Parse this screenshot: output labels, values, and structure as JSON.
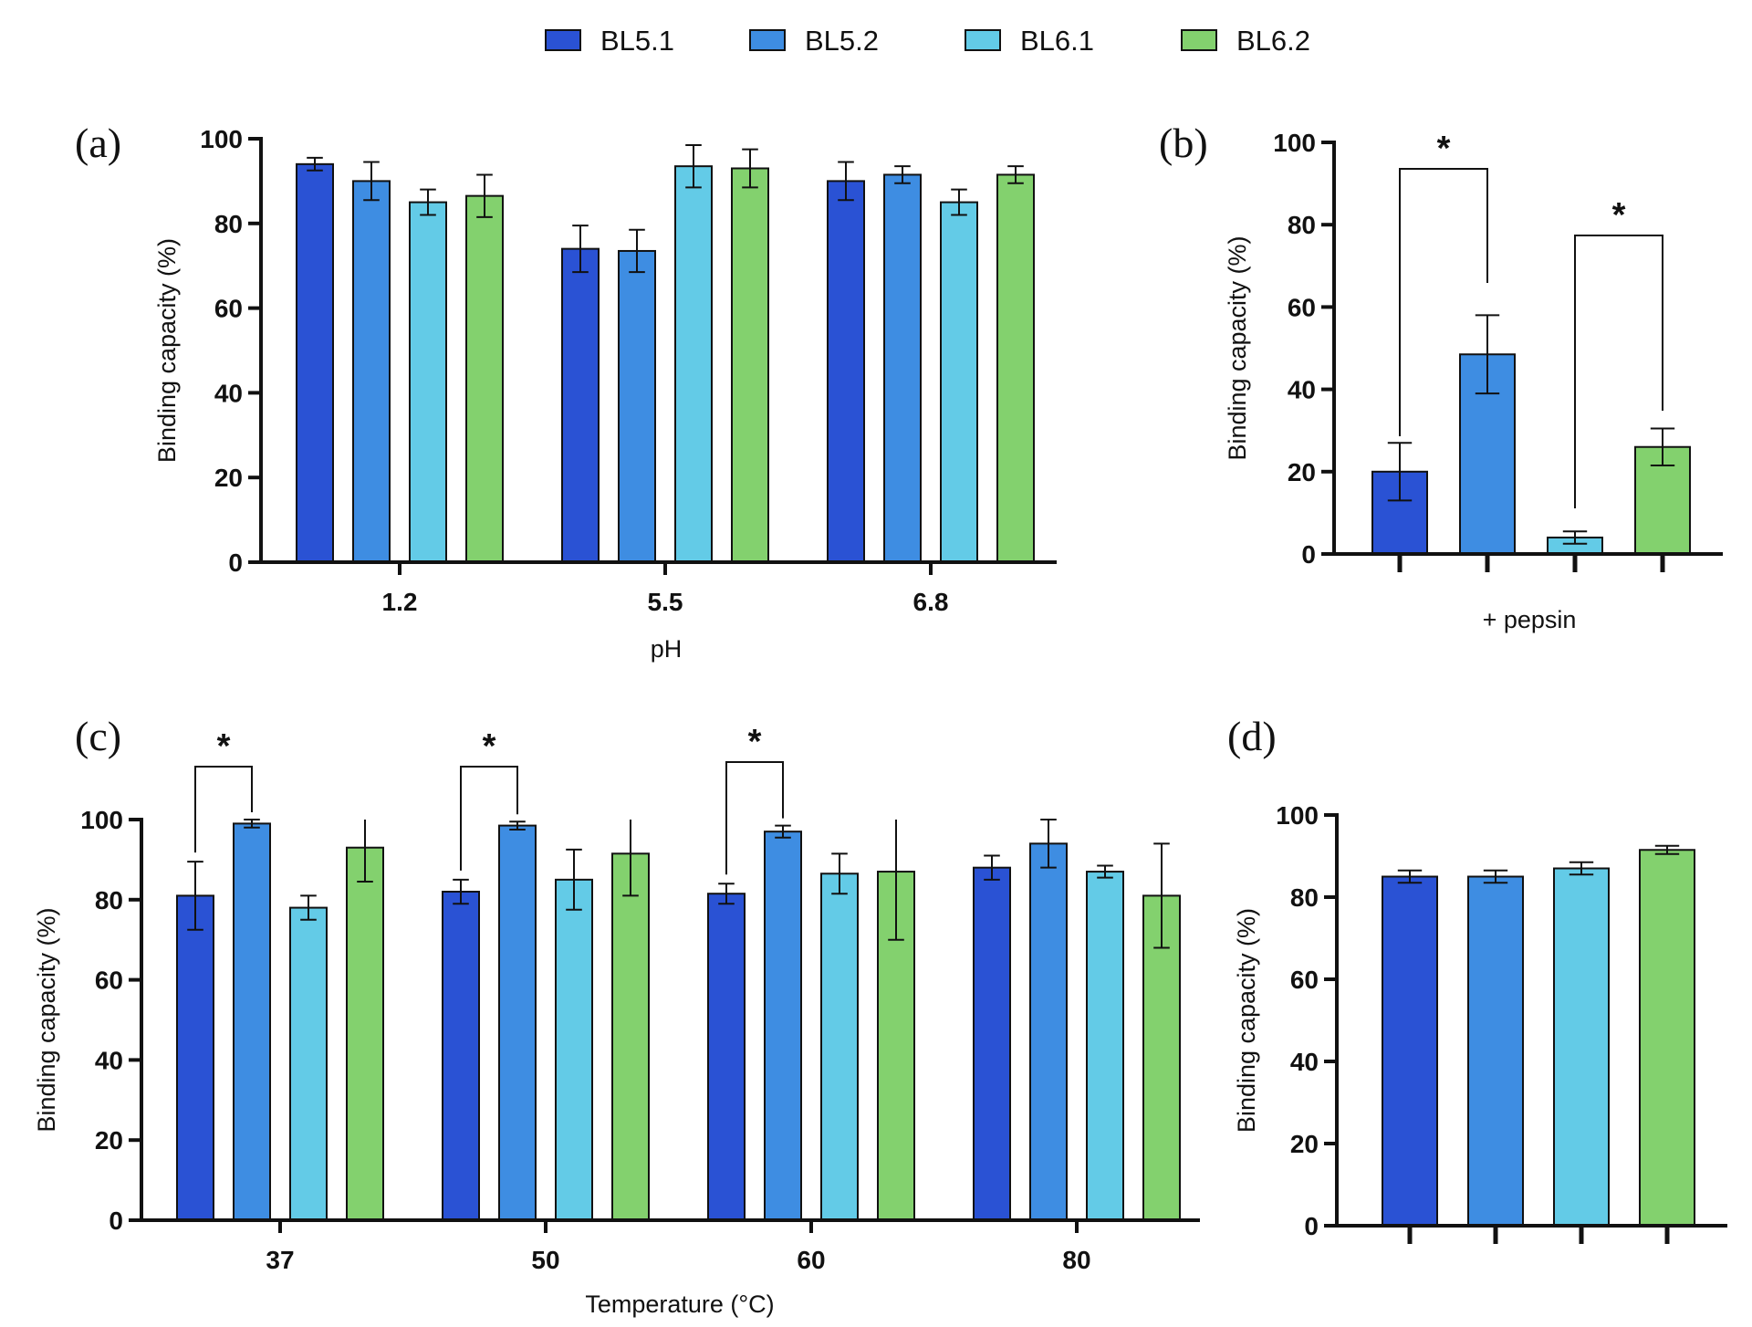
{
  "legend": [
    {
      "name": "BL5.1",
      "color": "#2a52d4"
    },
    {
      "name": "BL5.2",
      "color": "#3e8de2"
    },
    {
      "name": "BL6.1",
      "color": "#63cbe7"
    },
    {
      "name": "BL6.2",
      "color": "#83d16e"
    }
  ],
  "chart_data": [
    {
      "panel": "(a)",
      "type": "bar",
      "xlabel": "pH",
      "ylabel": "Binding capacity (%)",
      "ylim": [
        0,
        100
      ],
      "yticks": [
        "0",
        "20",
        "40",
        "60",
        "80",
        "100"
      ],
      "categories": [
        "1.2",
        "5.5",
        "6.8"
      ],
      "series": [
        {
          "name": "BL5.1",
          "values": [
            94,
            74,
            90
          ],
          "errors": [
            1.5,
            5.5,
            4.5
          ]
        },
        {
          "name": "BL5.2",
          "values": [
            90,
            73.5,
            91.5
          ],
          "errors": [
            4.5,
            5,
            2
          ]
        },
        {
          "name": "BL6.1",
          "values": [
            85,
            93.5,
            85
          ],
          "errors": [
            3,
            5,
            3
          ]
        },
        {
          "name": "BL6.2",
          "values": [
            86.5,
            93,
            91.5
          ],
          "errors": [
            5,
            4.5,
            2
          ]
        }
      ],
      "significance": []
    },
    {
      "panel": "(b)",
      "type": "bar",
      "xlabel": "+ pepsin",
      "ylabel": "Binding capacity (%)",
      "ylim": [
        0,
        100
      ],
      "yticks": [
        "0",
        "20",
        "40",
        "60",
        "80",
        "100"
      ],
      "categories": [
        "BL5.1",
        "BL5.2",
        "BL6.1",
        "BL6.2"
      ],
      "values": [
        20,
        48.5,
        4,
        26
      ],
      "errors": [
        7,
        9.5,
        1.5,
        4.5
      ],
      "significance": [
        {
          "from": 0,
          "to": 1,
          "label": "*"
        },
        {
          "from": 2,
          "to": 3,
          "label": "*"
        }
      ]
    },
    {
      "panel": "(c)",
      "type": "bar",
      "xlabel": "Temperature (°C)",
      "ylabel": "Binding capacity (%)",
      "ylim": [
        0,
        100
      ],
      "yticks": [
        "0",
        "20",
        "40",
        "60",
        "80",
        "100"
      ],
      "categories": [
        "37",
        "50",
        "60",
        "80"
      ],
      "series": [
        {
          "name": "BL5.1",
          "values": [
            81,
            82,
            81.5,
            88
          ],
          "errors": [
            8.5,
            3,
            2.5,
            3
          ]
        },
        {
          "name": "BL5.2",
          "values": [
            99,
            98.5,
            97,
            94
          ],
          "errors": [
            1,
            1,
            1.5,
            6
          ]
        },
        {
          "name": "BL6.1",
          "values": [
            78,
            85,
            86.5,
            87
          ],
          "errors": [
            3,
            7.5,
            5,
            1.5
          ]
        },
        {
          "name": "BL6.2",
          "values": [
            93,
            91.5,
            87,
            81
          ],
          "errors": [
            8.5,
            10.5,
            17,
            13
          ]
        }
      ],
      "significance": [
        {
          "group": 0,
          "label": "*"
        },
        {
          "group": 1,
          "label": "*"
        },
        {
          "group": 2,
          "label": "*"
        }
      ]
    },
    {
      "panel": "(d)",
      "type": "bar",
      "xlabel": "",
      "ylabel": "Binding capacity (%)",
      "ylim": [
        0,
        100
      ],
      "yticks": [
        "0",
        "20",
        "40",
        "60",
        "80",
        "100"
      ],
      "categories": [
        "BL5.1",
        "BL5.2",
        "BL6.1",
        "BL6.2"
      ],
      "values": [
        85,
        85,
        87,
        91.5
      ],
      "errors": [
        1.5,
        1.5,
        1.5,
        1
      ],
      "significance": []
    }
  ]
}
